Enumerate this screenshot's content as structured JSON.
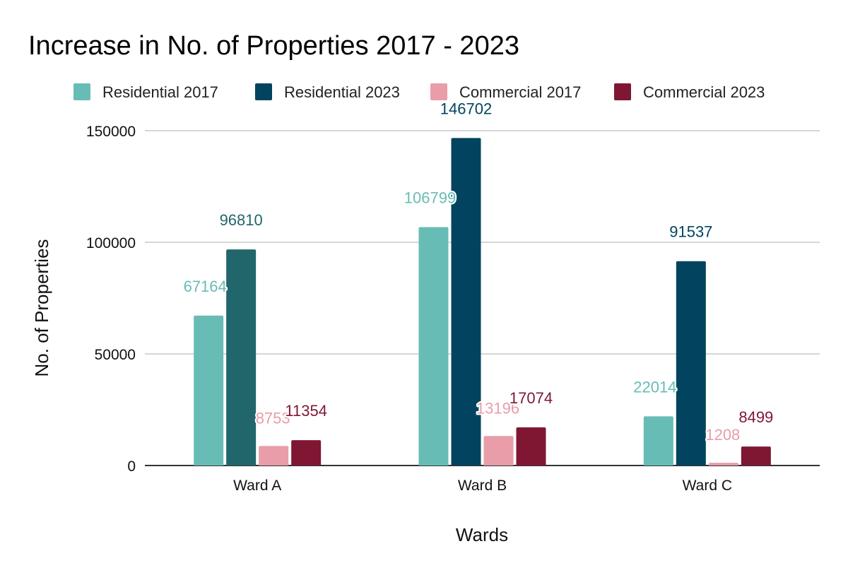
{
  "chart_data": {
    "type": "bar",
    "title": "Increase in No. of Properties 2017 - 2023",
    "xlabel": "Wards",
    "ylabel": "No. of Properties",
    "categories": [
      "Ward A",
      "Ward B",
      "Ward C"
    ],
    "ylim": [
      0,
      150000
    ],
    "yticks": [
      0,
      50000,
      100000,
      150000
    ],
    "ytick_labels": [
      "0",
      "50000",
      "100000",
      "150000"
    ],
    "grid": true,
    "legend_position": "top",
    "series": [
      {
        "name": "Residential  2017",
        "color": "#67bdb5",
        "values": [
          67164,
          106799,
          22014
        ],
        "labels": [
          "67164",
          "106799",
          "22014"
        ]
      },
      {
        "name": "Residential 2023",
        "color": "#02445f",
        "point_colors": [
          "#21666a",
          "#02445f",
          "#02445f"
        ],
        "values": [
          96810,
          146702,
          91537
        ],
        "labels": [
          "96810",
          "146702",
          "91537"
        ]
      },
      {
        "name": "Commercial 2017",
        "color": "#e89da9",
        "values": [
          8753,
          13196,
          1208
        ],
        "labels": [
          "8753",
          "13196",
          "1208"
        ]
      },
      {
        "name": "Commercial 2023",
        "color": "#7f1733",
        "values": [
          11354,
          17074,
          8499
        ],
        "labels": [
          "11354",
          "17074",
          "8499"
        ]
      }
    ]
  }
}
